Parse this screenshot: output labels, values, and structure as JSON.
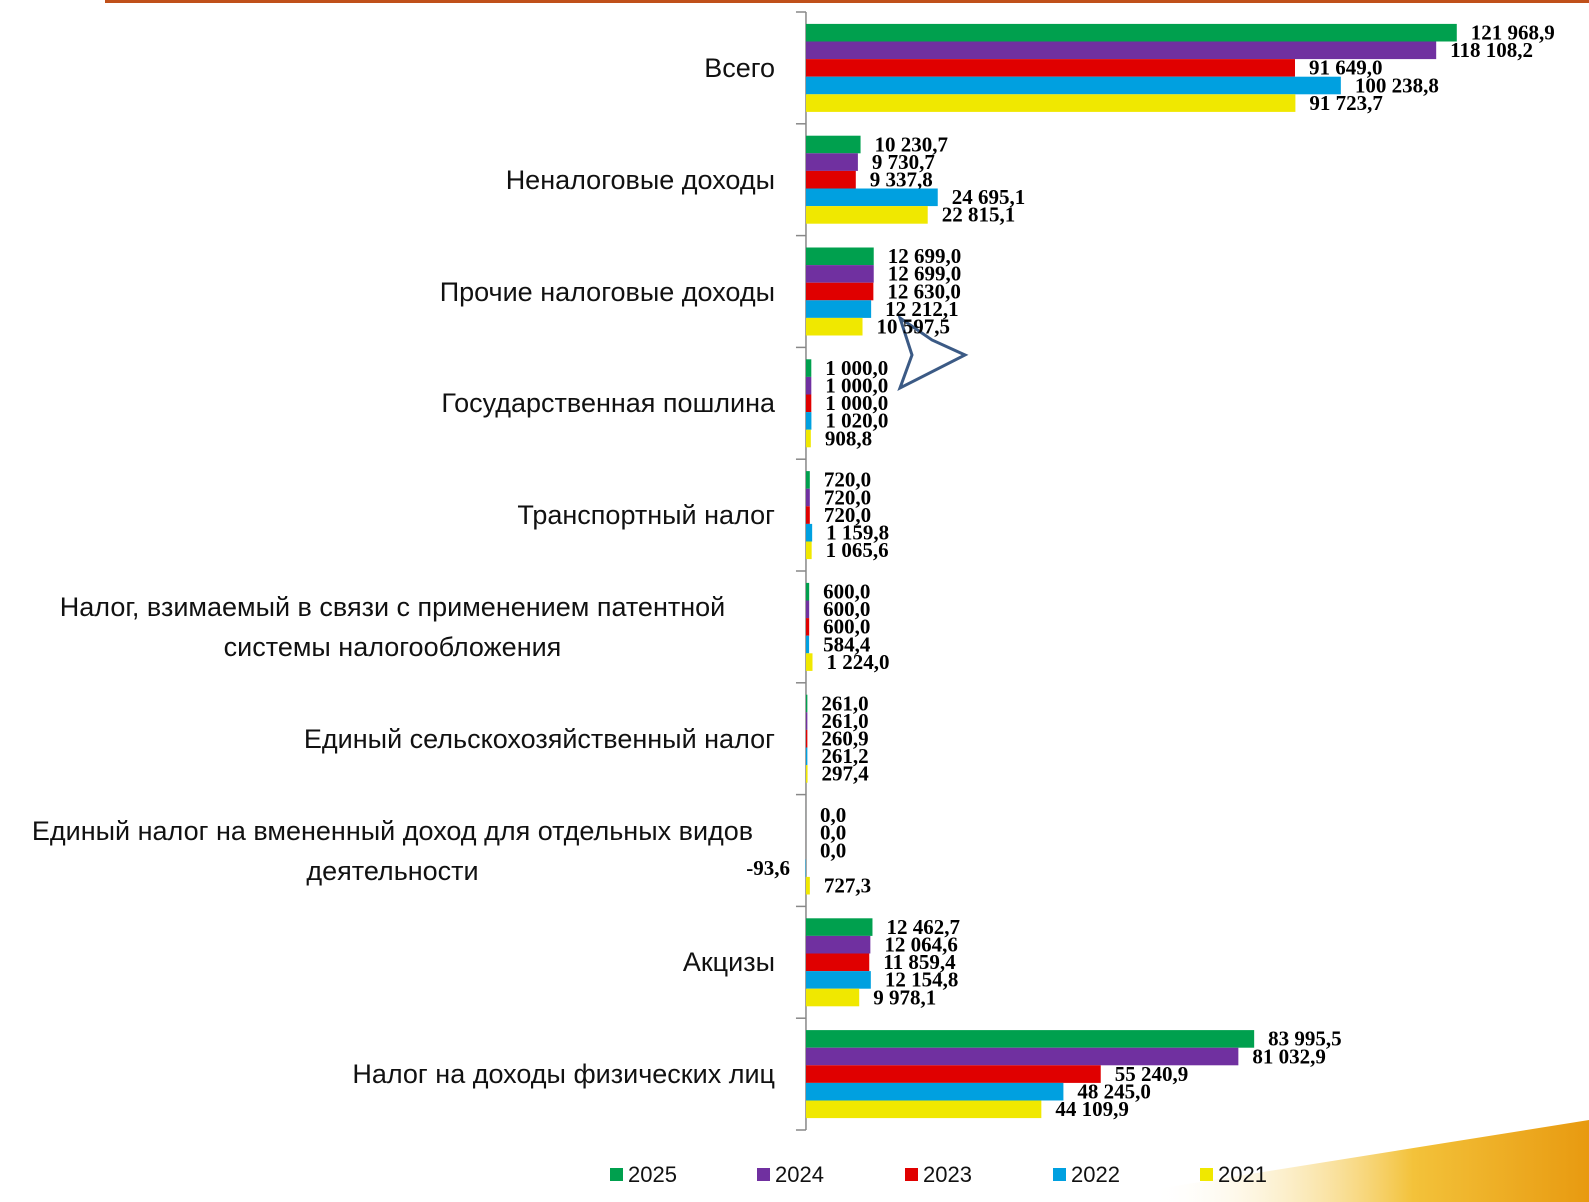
{
  "chart_data": {
    "type": "bar",
    "orientation": "horizontal",
    "categories": [
      "Всего",
      "Неналоговые доходы",
      "Прочие налоговые доходы",
      "Государственная пошлина",
      "Транспортный налог",
      "Налог, взимаемый в связи с применением патентной системы налогообложения",
      "Единый сельскохозяйственный налог",
      "Единый налог на вмененный доход для отдельных видов деятельности",
      "Акцизы",
      "Налог на доходы физических лиц"
    ],
    "series": [
      {
        "name": "2025",
        "color": "#00a04e",
        "values": [
          121968.9,
          10230.7,
          12699.0,
          1000.0,
          720.0,
          600.0,
          261.0,
          0.0,
          12462.7,
          83995.5
        ],
        "value_labels": [
          "121 968,9",
          "10 230,7",
          "12 699,0",
          "1 000,0",
          "720,0",
          "600,0",
          "261,0",
          "0,0",
          "12 462,7",
          "83 995,5"
        ]
      },
      {
        "name": "2024",
        "color": "#7030a0",
        "values": [
          118108.2,
          9730.7,
          12699.0,
          1000.0,
          720.0,
          600.0,
          261.0,
          0.0,
          12064.6,
          81032.9
        ],
        "value_labels": [
          "118 108,2",
          "9 730,7",
          "12 699,0",
          "1 000,0",
          "720,0",
          "600,0",
          "261,0",
          "0,0",
          "12 064,6",
          "81 032,9"
        ]
      },
      {
        "name": "2023",
        "color": "#e00000",
        "values": [
          91649.0,
          9337.8,
          12630.0,
          1000.0,
          720.0,
          600.0,
          260.9,
          0.0,
          11859.4,
          55240.9
        ],
        "value_labels": [
          "91 649,0",
          "9 337,8",
          "12 630,0",
          "1 000,0",
          "720,0",
          "600,0",
          "260,9",
          "0,0",
          "11 859,4",
          "55 240,9"
        ]
      },
      {
        "name": "2022",
        "color": "#00a0e0",
        "values": [
          100238.8,
          24695.1,
          12212.1,
          1020.0,
          1159.8,
          584.4,
          261.2,
          -93.6,
          12154.8,
          48245.0
        ],
        "value_labels": [
          "100 238,8",
          "24 695,1",
          "12 212,1",
          "1 020,0",
          "1 159,8",
          "584,4",
          "261,2",
          "-93,6",
          "12 154,8",
          "48 245,0"
        ]
      },
      {
        "name": "2021",
        "color": "#f0e800",
        "values": [
          91723.7,
          22815.1,
          10597.5,
          908.8,
          1065.6,
          1224.0,
          297.4,
          727.3,
          9978.1,
          44109.9
        ],
        "value_labels": [
          "91 723,7",
          "22 815,1",
          "10 597,5",
          "908,8",
          "1 065,6",
          "1 224,0",
          "297,4",
          "727,3",
          "9 978,1",
          "44 109,9"
        ]
      }
    ],
    "xlim": [
      -2000,
      140000
    ]
  }
}
